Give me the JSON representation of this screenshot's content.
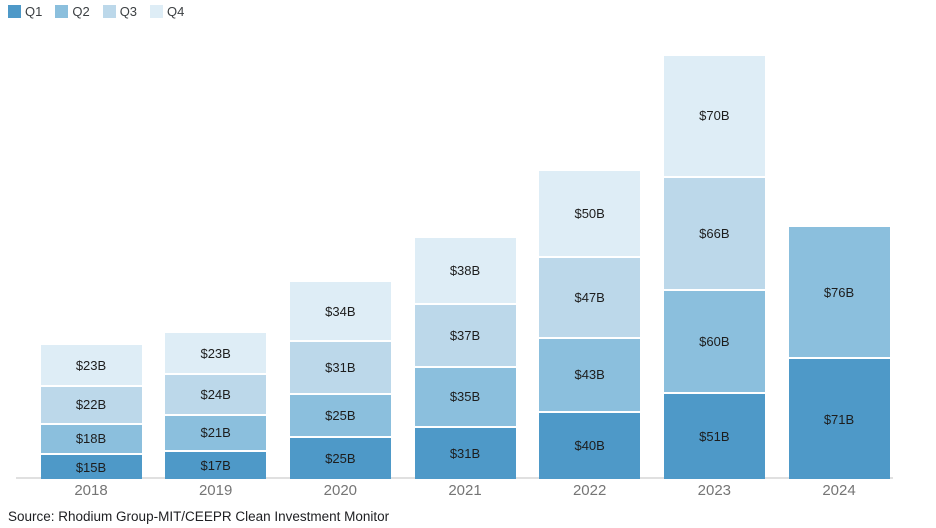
{
  "chart_data": {
    "type": "bar",
    "stacked": true,
    "title": "",
    "xlabel": "",
    "ylabel": "",
    "categories": [
      "2018",
      "2019",
      "2020",
      "2021",
      "2022",
      "2023",
      "2024"
    ],
    "series": [
      {
        "name": "Q1",
        "color": "#4e99c8",
        "values": [
          15,
          17,
          25,
          31,
          40,
          51,
          71
        ],
        "labels": [
          "$15B",
          "$17B",
          "$25B",
          "$31B",
          "$40B",
          "$51B",
          "$71B"
        ]
      },
      {
        "name": "Q2",
        "color": "#8bbfdd",
        "values": [
          18,
          21,
          25,
          35,
          43,
          60,
          76
        ],
        "labels": [
          "$18B",
          "$21B",
          "$25B",
          "$35B",
          "$43B",
          "$60B",
          "$76B"
        ]
      },
      {
        "name": "Q3",
        "color": "#bcd8ea",
        "values": [
          22,
          24,
          31,
          37,
          47,
          66,
          null
        ],
        "labels": [
          "$22B",
          "$24B",
          "$31B",
          "$37B",
          "$47B",
          "$66B",
          null
        ]
      },
      {
        "name": "Q4",
        "color": "#deedf6",
        "values": [
          23,
          23,
          34,
          38,
          50,
          70,
          null
        ],
        "labels": [
          "$23B",
          "$23B",
          "$34B",
          "$38B",
          "$50B",
          "$70B",
          null
        ]
      }
    ],
    "stack_totals": [
      78,
      85,
      115,
      141,
      180,
      247,
      147
    ],
    "legend": [
      "Q1",
      "Q2",
      "Q3",
      "Q4"
    ],
    "legend_position": "top-left",
    "ylim": [
      0,
      247
    ],
    "grid": false,
    "axis_line_color": "#e0e0e0",
    "tick_label_color": "#757575",
    "value_label_color": "#1d1d1d"
  },
  "source_note": "Source: Rhodium Group-MIT/CEEPR Clean Investment Monitor"
}
